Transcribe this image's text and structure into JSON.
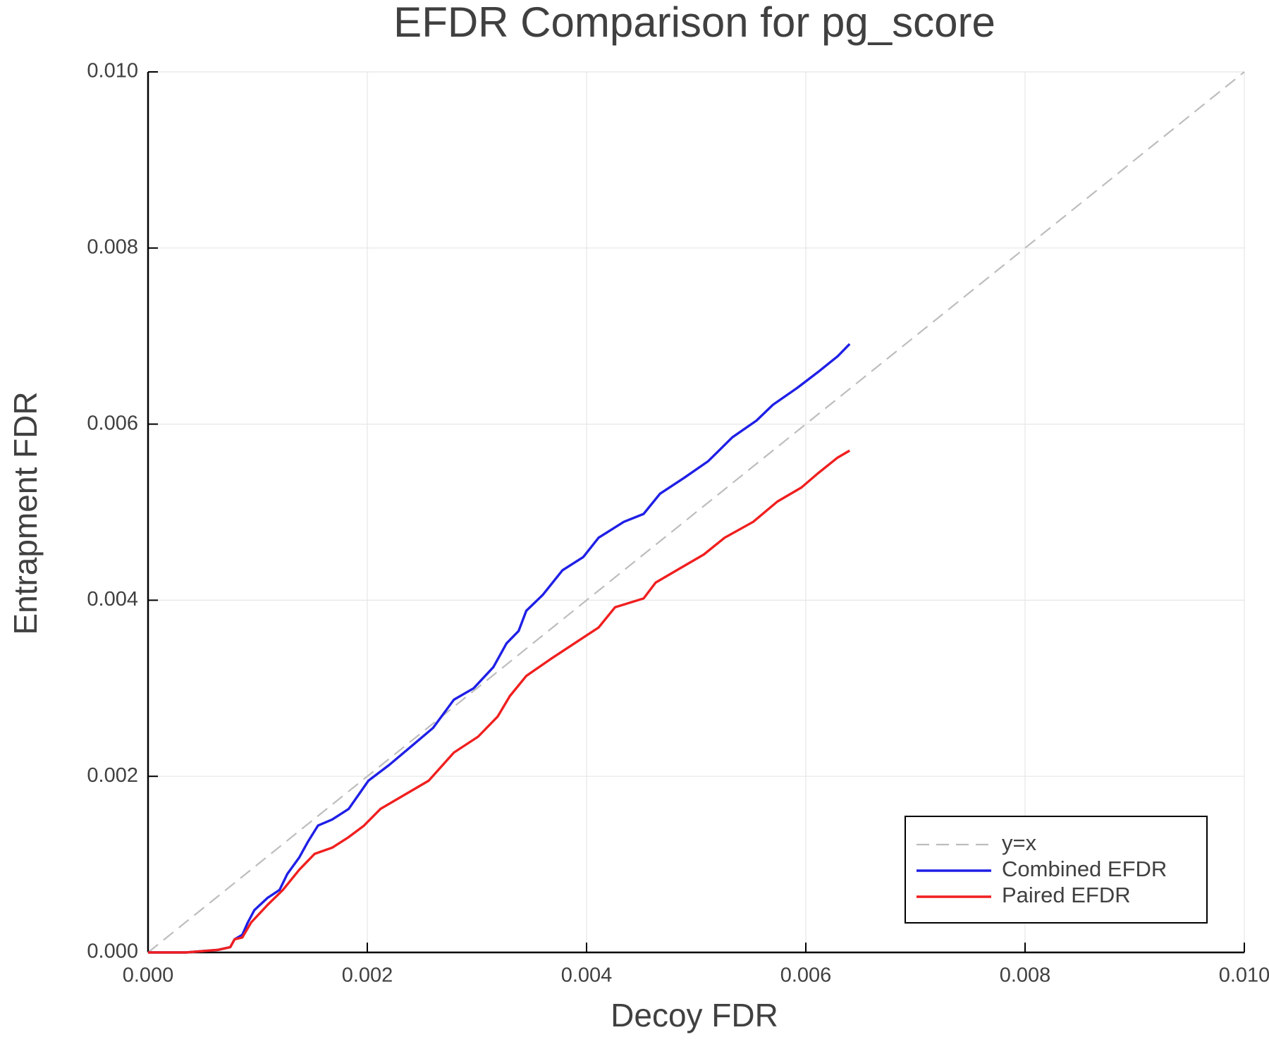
{
  "chart_data": {
    "type": "line",
    "title": "EFDR Comparison for pg_score",
    "x_label": "Decoy FDR",
    "y_label": "Entrapment FDR",
    "xlim": [
      0,
      0.01
    ],
    "ylim": [
      0,
      0.01
    ],
    "xticks": [
      {
        "value": 0,
        "label": "0.000"
      },
      {
        "value": 0.002,
        "label": "0.002"
      },
      {
        "value": 0.004,
        "label": "0.004"
      },
      {
        "value": 0.006,
        "label": "0.006"
      },
      {
        "value": 0.008,
        "label": "0.008"
      },
      {
        "value": 0.01,
        "label": "0.010"
      }
    ],
    "yticks": [
      {
        "value": 0,
        "label": "0.000"
      },
      {
        "value": 0.002,
        "label": "0.002"
      },
      {
        "value": 0.004,
        "label": "0.004"
      },
      {
        "value": 0.006,
        "label": "0.006"
      },
      {
        "value": 0.008,
        "label": "0.008"
      },
      {
        "value": 0.01,
        "label": "0.010"
      }
    ],
    "grid": true,
    "legend": "bottom right",
    "series": [
      {
        "name": "y=x",
        "color": "#bdbdbd",
        "dash": true,
        "x": [
          0,
          0.01
        ],
        "values": [
          0,
          0.01
        ]
      },
      {
        "name": "Combined EFDR",
        "color": "#1f1fe6",
        "dash": false,
        "x": [
          0,
          0.00035,
          0.00064,
          0.00075,
          0.00079,
          0.00086,
          0.00091,
          0.00097,
          0.00109,
          0.0012,
          0.00127,
          0.00138,
          0.00146,
          0.00155,
          0.00168,
          0.00183,
          0.00201,
          0.0022,
          0.00242,
          0.0026,
          0.00279,
          0.00297,
          0.00315,
          0.00327,
          0.00338,
          0.00345,
          0.0036,
          0.00378,
          0.00397,
          0.00411,
          0.00434,
          0.00452,
          0.00467,
          0.00489,
          0.00511,
          0.00533,
          0.00555,
          0.0057,
          0.00592,
          0.00611,
          0.00629,
          0.0064
        ],
        "values": [
          0,
          0,
          3e-05,
          6e-05,
          0.00015,
          0.0002,
          0.00034,
          0.00048,
          0.00062,
          0.00071,
          0.00089,
          0.00108,
          0.00126,
          0.00144,
          0.00151,
          0.00163,
          0.00195,
          0.00213,
          0.00236,
          0.00255,
          0.00287,
          0.003,
          0.00324,
          0.00351,
          0.00365,
          0.00388,
          0.00406,
          0.00434,
          0.00449,
          0.00471,
          0.00489,
          0.00498,
          0.00521,
          0.00539,
          0.00558,
          0.00585,
          0.00604,
          0.00622,
          0.00641,
          0.00659,
          0.00677,
          0.00691
        ]
      },
      {
        "name": "Paired EFDR",
        "color": "#f01f1f",
        "dash": false,
        "x": [
          0,
          0.00035,
          0.00064,
          0.00075,
          0.00079,
          0.00086,
          0.00094,
          0.00109,
          0.00123,
          0.00138,
          0.00152,
          0.00168,
          0.00183,
          0.00197,
          0.00212,
          0.00234,
          0.00256,
          0.00279,
          0.00301,
          0.00319,
          0.0033,
          0.00345,
          0.00367,
          0.00389,
          0.00411,
          0.00426,
          0.00452,
          0.00463,
          0.00485,
          0.00507,
          0.00526,
          0.00552,
          0.00574,
          0.00596,
          0.00611,
          0.00629,
          0.0064
        ],
        "values": [
          0,
          0,
          3e-05,
          6e-05,
          0.00015,
          0.00017,
          0.00034,
          0.00054,
          0.00071,
          0.00094,
          0.00112,
          0.00119,
          0.00131,
          0.00144,
          0.00163,
          0.00179,
          0.00195,
          0.00227,
          0.00245,
          0.00268,
          0.00291,
          0.00314,
          0.00333,
          0.00351,
          0.00369,
          0.00392,
          0.00402,
          0.0042,
          0.00436,
          0.00452,
          0.00471,
          0.00489,
          0.00512,
          0.00528,
          0.00544,
          0.00562,
          0.0057
        ]
      }
    ]
  }
}
